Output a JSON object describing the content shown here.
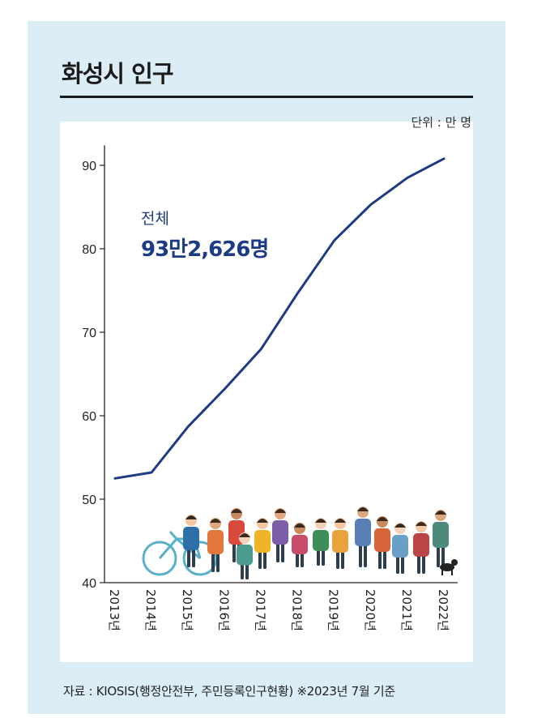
{
  "header": {
    "title": "화성시 인구",
    "unit": "단위 : 만 명"
  },
  "annotation": {
    "label": "전체",
    "value": "93만2,626명"
  },
  "footer": {
    "source": "자료 : KIOSIS(행정안전부, 주민등록인구현황) ※2023년 7월 기준"
  },
  "colors": {
    "line": "#1d3b85",
    "background": "#dcedf5"
  },
  "illustration": {
    "name": "crowd-of-people-illustration"
  },
  "chart_data": {
    "type": "line",
    "title": "화성시 인구",
    "ylabel": "단위 : 만 명",
    "categories": [
      "2013년",
      "2014년",
      "2015년",
      "2016년",
      "2017년",
      "2018년",
      "2019년",
      "2020년",
      "2021년",
      "2022년"
    ],
    "series": [
      {
        "values": [
          52.5,
          53.2,
          58.7,
          63.2,
          68.0,
          74.7,
          81.0,
          85.3,
          88.5,
          90.8
        ]
      }
    ],
    "yticks": [
      40,
      50,
      60,
      70,
      80,
      90
    ],
    "ylim": [
      40,
      92
    ],
    "grid": false
  }
}
